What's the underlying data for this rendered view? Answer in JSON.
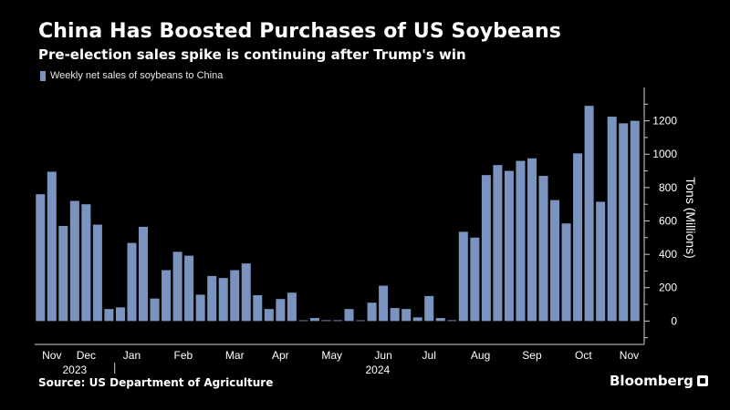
{
  "header": {
    "title": "China Has Boosted Purchases of US Soybeans",
    "subtitle": "Pre-election sales spike is continuing after Trump's win"
  },
  "legend": {
    "label": "Weekly net sales of soybeans to China"
  },
  "footer": {
    "source": "Source:  US Department of Agriculture",
    "brand": "Bloomberg"
  },
  "colors": {
    "bar": "#7b93bf",
    "background": "#000000",
    "text": "#ffffff"
  },
  "chart_data": {
    "type": "bar",
    "ylabel": "Tons (Millions)",
    "ylim": [
      -140,
      1400
    ],
    "yticks": [
      0,
      200,
      400,
      600,
      800,
      1000,
      1200
    ],
    "y_axis_position": "right",
    "grid": false,
    "values": [
      760,
      895,
      570,
      720,
      700,
      578,
      72,
      82,
      468,
      565,
      135,
      305,
      415,
      392,
      158,
      270,
      258,
      305,
      345,
      155,
      72,
      132,
      170,
      0,
      18,
      5,
      5,
      72,
      0,
      110,
      212,
      78,
      72,
      22,
      150,
      18,
      5,
      535,
      500,
      875,
      935,
      900,
      960,
      975,
      870,
      725,
      585,
      1005,
      1290,
      715,
      1225,
      1185,
      1200
    ],
    "month_labels": [
      {
        "label": "Nov",
        "index": 1
      },
      {
        "label": "Dec",
        "index": 4
      },
      {
        "label": "Jan",
        "index": 8
      },
      {
        "label": "Feb",
        "index": 12.5
      },
      {
        "label": "Mar",
        "index": 17
      },
      {
        "label": "Apr",
        "index": 21
      },
      {
        "label": "May",
        "index": 25.5
      },
      {
        "label": "Jun",
        "index": 30
      },
      {
        "label": "Jul",
        "index": 34
      },
      {
        "label": "Aug",
        "index": 38.5
      },
      {
        "label": "Sep",
        "index": 43
      },
      {
        "label": "Oct",
        "index": 47.5
      },
      {
        "label": "Nov",
        "index": 51.5
      }
    ],
    "year_labels": [
      {
        "label": "2023",
        "index": 3
      },
      {
        "label": "2024",
        "index": 29.5
      }
    ]
  }
}
